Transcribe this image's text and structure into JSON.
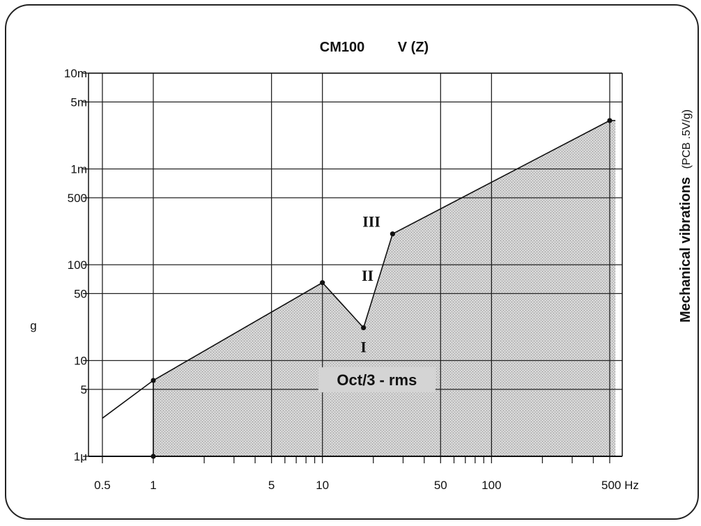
{
  "chart_data": {
    "type": "line",
    "title": "CM100",
    "subtitle": "V (Z)",
    "ylabel": "g",
    "side_label": "Mechanical vibrations",
    "side_label_note": "(PCB .5V/g)",
    "x_scale": "log",
    "y_scale": "log",
    "xlim": [
      0.5,
      600
    ],
    "ylim": [
      1e-06,
      0.01
    ],
    "x_ticks": [
      {
        "value": 0.5,
        "label": "0.5"
      },
      {
        "value": 1,
        "label": "1"
      },
      {
        "value": 5,
        "label": "5"
      },
      {
        "value": 10,
        "label": "10"
      },
      {
        "value": 50,
        "label": "50"
      },
      {
        "value": 100,
        "label": "100"
      },
      {
        "value": 500,
        "label": "500 Hz"
      }
    ],
    "x_minor_ticks": [
      2,
      3,
      4,
      6,
      7,
      8,
      9,
      20,
      30,
      40,
      60,
      70,
      80,
      90,
      200,
      300,
      400
    ],
    "x_gridlines": [
      0.5,
      1,
      5,
      10,
      50,
      100,
      500
    ],
    "y_ticks": [
      {
        "value": 1e-06,
        "label": "1μ"
      },
      {
        "value": 5e-06,
        "label": "5"
      },
      {
        "value": 1e-05,
        "label": "10"
      },
      {
        "value": 5e-05,
        "label": "50"
      },
      {
        "value": 0.0001,
        "label": "100"
      },
      {
        "value": 0.0005,
        "label": "500"
      },
      {
        "value": 0.001,
        "label": "1m"
      },
      {
        "value": 0.005,
        "label": "5m"
      },
      {
        "value": 0.01,
        "label": "10m"
      }
    ],
    "envelope": {
      "x": [
        0.5,
        1,
        10,
        17.5,
        26,
        500
      ],
      "y": [
        2.5e-06,
        6.2e-06,
        6.5e-05,
        2.2e-05,
        0.00021,
        0.0032
      ]
    },
    "shaded_region": {
      "x": [
        1,
        1,
        10,
        17.5,
        26,
        500,
        540,
        540
      ],
      "y": [
        1e-06,
        6.2e-06,
        6.5e-05,
        2.2e-05,
        0.00021,
        0.0032,
        0.0032,
        1e-06
      ]
    },
    "markers": [
      {
        "x": 1,
        "y": 1e-06
      },
      {
        "x": 1,
        "y": 6.2e-06
      },
      {
        "x": 10,
        "y": 6.5e-05
      },
      {
        "x": 17.5,
        "y": 2.2e-05
      },
      {
        "x": 26,
        "y": 0.00021
      },
      {
        "x": 500,
        "y": 0.0032
      }
    ],
    "annotations": [
      {
        "text": "III",
        "x": 19.5,
        "y": 0.00025
      },
      {
        "text": "II",
        "x": 18.5,
        "y": 6.8e-05
      },
      {
        "text": "I",
        "x": 17.5,
        "y": 1.22e-05
      },
      {
        "text": "Oct/3 - rms",
        "x": 21,
        "y": 5.5e-06
      }
    ],
    "grid": true,
    "fill_color": "#cfcfcf",
    "line_color": "#111111"
  }
}
